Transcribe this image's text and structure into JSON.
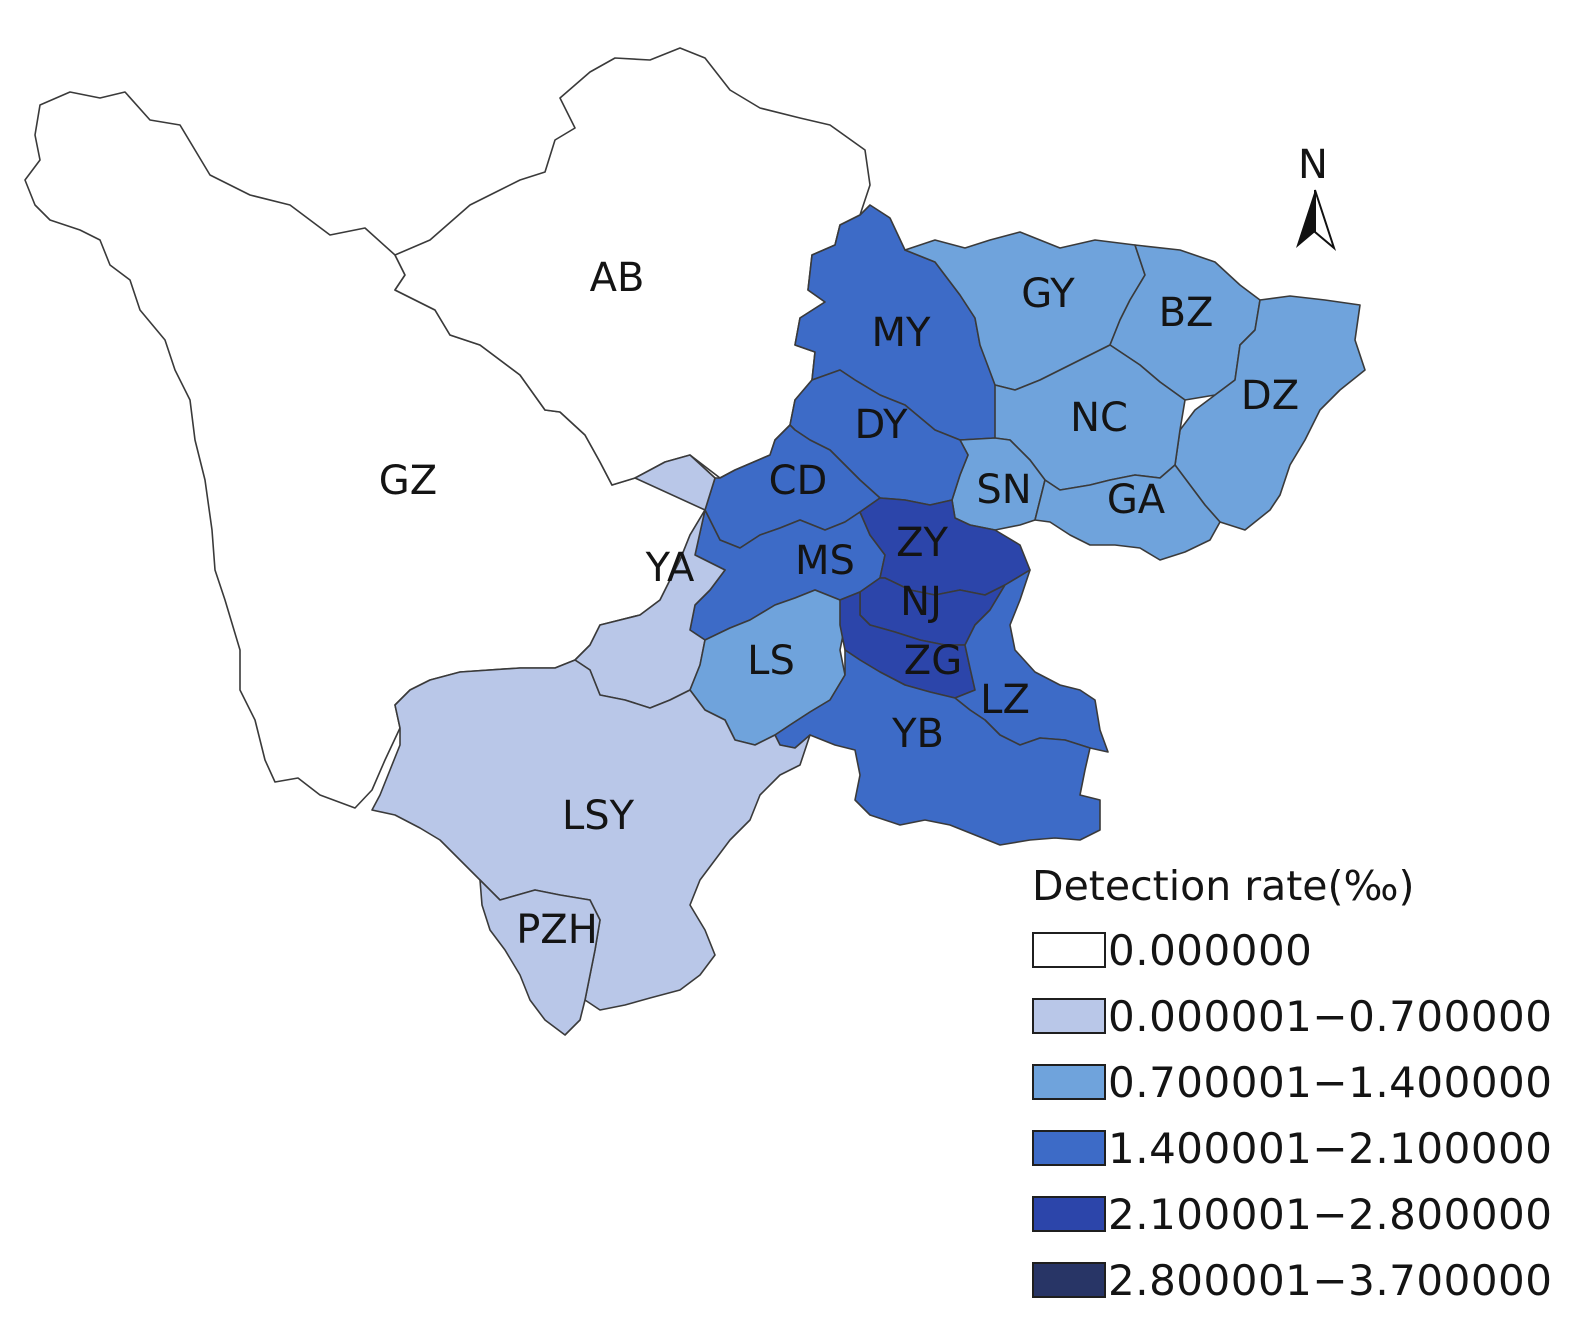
{
  "map": {
    "north_label": "N",
    "regions": [
      {
        "code": "AB",
        "bin": 0
      },
      {
        "code": "GZ",
        "bin": 0
      },
      {
        "code": "GY",
        "bin": 2
      },
      {
        "code": "BZ",
        "bin": 2
      },
      {
        "code": "NC",
        "bin": 2
      },
      {
        "code": "DZ",
        "bin": 2
      },
      {
        "code": "SN",
        "bin": 2
      },
      {
        "code": "GA",
        "bin": 2
      },
      {
        "code": "MY",
        "bin": 3
      },
      {
        "code": "DY",
        "bin": 3
      },
      {
        "code": "CD",
        "bin": 3
      },
      {
        "code": "MS",
        "bin": 3
      },
      {
        "code": "YA",
        "bin": 1
      },
      {
        "code": "LS",
        "bin": 2
      },
      {
        "code": "ZY",
        "bin": 4
      },
      {
        "code": "NJ",
        "bin": 4
      },
      {
        "code": "ZG",
        "bin": 4
      },
      {
        "code": "LZ",
        "bin": 3
      },
      {
        "code": "YB",
        "bin": 3
      },
      {
        "code": "LSY",
        "bin": 1
      },
      {
        "code": "PZH",
        "bin": 1
      }
    ]
  },
  "legend": {
    "title": "Detection rate(‰)",
    "items": [
      {
        "label": "0.000000",
        "color": "#ffffff"
      },
      {
        "label": "0.000001−0.700000",
        "color": "#b9c7e8"
      },
      {
        "label": "0.700001−1.400000",
        "color": "#6fa3dc"
      },
      {
        "label": "1.400001−2.100000",
        "color": "#3d6bc7"
      },
      {
        "label": "2.100001−2.800000",
        "color": "#2c45aa"
      },
      {
        "label": "2.800001−3.700000",
        "color": "#283566"
      }
    ]
  }
}
